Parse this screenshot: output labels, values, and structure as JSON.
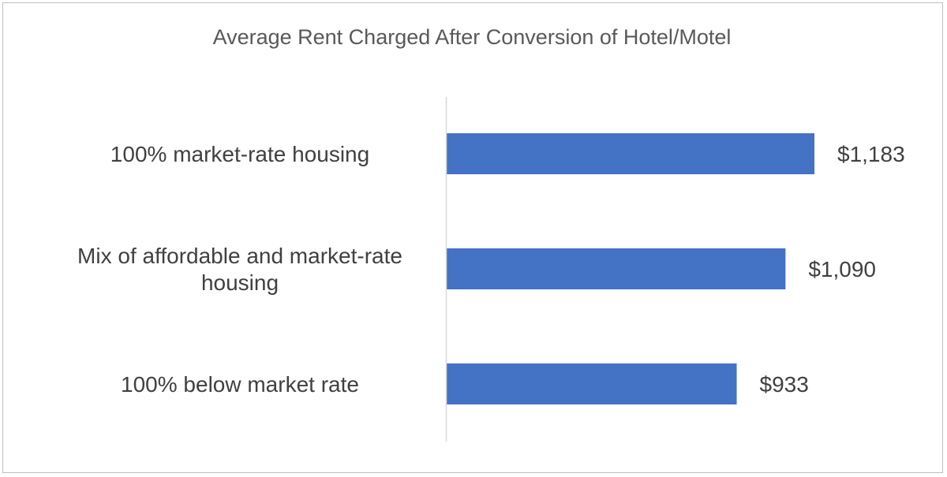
{
  "chart_data": {
    "type": "bar",
    "orientation": "horizontal",
    "title": "Average Rent Charged After Conversion of Hotel/Motel",
    "categories": [
      "100% market-rate housing",
      "Mix of affordable and market-rate housing",
      "100% below market rate"
    ],
    "category_lines": [
      [
        "100% market-rate housing"
      ],
      [
        "Mix of affordable and market-rate",
        "housing"
      ],
      [
        "100% below market rate"
      ]
    ],
    "values": [
      1183,
      1090,
      933
    ],
    "value_labels": [
      "$1,183",
      "$1,090",
      "$933"
    ],
    "xlim": [
      0,
      1300
    ],
    "xlabel": "",
    "ylabel": "",
    "grid": false,
    "legend": "none",
    "bar_color": "#4472C4"
  }
}
